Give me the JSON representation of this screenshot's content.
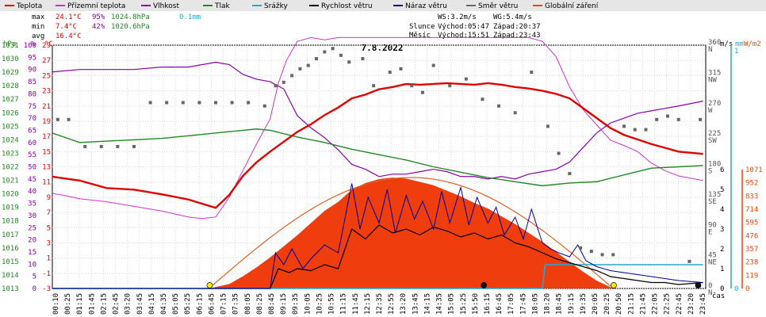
{
  "chart_data": {
    "type": "line",
    "title": "7.8.2022",
    "legend": [
      {
        "label": "Teplota",
        "color": "#e00000"
      },
      {
        "label": "Přízemní teplota",
        "color": "#cc33cc"
      },
      {
        "label": "Vlhkost",
        "color": "#8800aa"
      },
      {
        "label": "Tlak",
        "color": "#228822"
      },
      {
        "label": "Srážky",
        "color": "#22aacc"
      },
      {
        "label": "Rychlost větru",
        "color": "#000000"
      },
      {
        "label": "Náraz větru",
        "color": "#000099"
      },
      {
        "label": "Směr větru",
        "color": "#666666"
      },
      {
        "label": "Globální záření",
        "color": "#ee4400"
      }
    ],
    "stats": {
      "max": {
        "label": "max",
        "temp": "24.1°C",
        "hum": "95%",
        "pres": "1024.8hPa",
        "rain": "0.1mm"
      },
      "min": {
        "label": "min",
        "temp": "7.4°C",
        "hum": "42%",
        "pres": "1020.6hPa"
      },
      "avg": {
        "label": "avg",
        "temp": "16.4°C"
      }
    },
    "wind_info": {
      "ws": "WS:3.2m/s",
      "wg": "WG:5.4m/s"
    },
    "sun": {
      "label": "Slunce",
      "rise": "Východ:05:47",
      "set": "Západ:20:37"
    },
    "moon": {
      "label": "Měsíc",
      "rise": "Východ:15:51",
      "set": "Západ:23:43"
    },
    "axes": {
      "hpa_label": "hPa",
      "pct_label": "%",
      "c_label": "°C",
      "ms_label": "m/s",
      "mm_label": "mm",
      "wm2_label": "W/m2",
      "x_unit": "čas",
      "hpa_ticks": [
        1013,
        1014,
        1015,
        1016,
        1017,
        1018,
        1019,
        1020,
        1021,
        1022,
        1023,
        1024,
        1025,
        1026,
        1027,
        1028,
        1029,
        1030,
        1031
      ],
      "pct_ticks": [
        0,
        5,
        10,
        15,
        20,
        25,
        30,
        35,
        40,
        45,
        50,
        55,
        60,
        65,
        70,
        75,
        80,
        85,
        90,
        95,
        100
      ],
      "c_ticks": [
        -3,
        -1,
        1,
        3,
        5,
        7,
        9,
        11,
        13,
        15,
        17,
        19,
        21,
        23,
        25,
        27,
        29
      ],
      "dir_ticks": [
        {
          "deg": "0",
          "lab": "N"
        },
        {
          "deg": "45",
          "lab": "NE"
        },
        {
          "deg": "90",
          "lab": "E"
        },
        {
          "deg": "135",
          "lab": "SE"
        },
        {
          "deg": "180",
          "lab": "S"
        },
        {
          "deg": "225",
          "lab": "SW"
        },
        {
          "deg": "270",
          "lab": "W"
        },
        {
          "deg": "315",
          "lab": "NW"
        },
        {
          "deg": "360",
          "lab": "N"
        }
      ],
      "ms_ticks": [
        0,
        1,
        2,
        3,
        4,
        5,
        6
      ],
      "mm_ticks": [
        0,
        1
      ],
      "wm2_ticks": [
        0,
        119,
        238,
        357,
        476,
        595,
        714,
        833,
        952,
        1071
      ],
      "x_ticks": [
        "00:10",
        "00:25",
        "01:15",
        "01:45",
        "02:15",
        "02:45",
        "03:20",
        "03:45",
        "04:15",
        "04:35",
        "05:05",
        "05:25",
        "06:15",
        "06:45",
        "07:15",
        "07:35",
        "08:05",
        "08:25",
        "08:45",
        "09:15",
        "09:35",
        "10:05",
        "10:25",
        "10:55",
        "11:15",
        "11:45",
        "12:15",
        "12:35",
        "12:55",
        "13:20",
        "13:45",
        "14:15",
        "14:35",
        "15:05",
        "15:25",
        "15:50",
        "16:15",
        "16:45",
        "17:05",
        "17:45",
        "18:05",
        "18:20",
        "18:45",
        "19:15",
        "19:35",
        "20:05",
        "20:25",
        "20:50",
        "21:15",
        "21:45",
        "22:05",
        "22:25",
        "22:45",
        "23:20",
        "23:45"
      ]
    },
    "series": [
      {
        "name": "Teplota",
        "unit": "°C",
        "x": [
          0,
          1,
          2,
          3,
          4,
          5,
          6,
          6.5,
          7,
          7.5,
          8,
          8.5,
          9,
          9.5,
          10,
          10.5,
          11,
          11.5,
          12,
          12.5,
          13,
          13.5,
          14,
          14.5,
          15,
          15.5,
          16,
          16.5,
          17,
          17.5,
          18,
          18.5,
          19,
          19.5,
          20,
          20.5,
          21,
          21.5,
          22,
          22.5,
          23,
          23.9
        ],
        "y": [
          11.7,
          11.2,
          10.2,
          10.0,
          9.4,
          8.7,
          7.6,
          9.3,
          11.8,
          13.6,
          15.0,
          16.3,
          17.6,
          18.6,
          19.8,
          20.8,
          22.0,
          22.5,
          23.2,
          23.5,
          23.9,
          23.8,
          23.9,
          24.0,
          23.9,
          23.8,
          24.0,
          23.8,
          23.5,
          23.3,
          23.0,
          22.6,
          22.0,
          20.7,
          19.4,
          18.1,
          17.2,
          16.6,
          16.0,
          15.5,
          15.0,
          14.7
        ]
      },
      {
        "name": "Přízemní teplota",
        "unit": "°C",
        "x": [
          0,
          0.5,
          1,
          2,
          3,
          4,
          5,
          5.5,
          6,
          6.5,
          7,
          7.5,
          8,
          8.3,
          8.6,
          9,
          9.5,
          10,
          10.5,
          11,
          12,
          13,
          14,
          15,
          16,
          17,
          17.5,
          18,
          18.5,
          19,
          19.5,
          20,
          20.5,
          21,
          21.5,
          22,
          22.5,
          23,
          23.9
        ],
        "y": [
          9.5,
          9.2,
          8.8,
          8.4,
          7.8,
          7.2,
          6.4,
          6.2,
          6.4,
          9.0,
          12.5,
          16.0,
          19.3,
          24.0,
          27.0,
          29.5,
          30.0,
          29.7,
          30.0,
          30.0,
          30.0,
          30.0,
          30.0,
          30.0,
          30.0,
          30.0,
          30.0,
          29.5,
          27.5,
          23.5,
          20.5,
          18.5,
          16.5,
          15.8,
          15.0,
          13.5,
          12.5,
          11.8,
          11.2
        ]
      },
      {
        "name": "Vlhkost",
        "unit": "%",
        "x": [
          0,
          1,
          2,
          3,
          4,
          5,
          6,
          6.5,
          7,
          7.5,
          8,
          8.5,
          9,
          9.5,
          10,
          10.5,
          11,
          11.5,
          12,
          12.5,
          13,
          13.5,
          14,
          14.5,
          15,
          15.5,
          16,
          16.5,
          17,
          17.5,
          18,
          18.5,
          19,
          19.5,
          20,
          20.5,
          21,
          21.5,
          22,
          22.5,
          23,
          23.9
        ],
        "y": [
          89,
          90,
          90,
          90,
          91,
          91,
          93,
          92,
          88,
          86,
          85,
          82,
          71,
          66,
          62,
          57,
          51,
          49,
          46,
          47,
          47,
          48,
          49,
          48,
          46,
          46,
          45,
          46,
          45,
          47,
          48,
          49,
          52,
          58,
          64,
          68,
          70,
          72,
          73,
          74,
          75,
          77
        ]
      },
      {
        "name": "Tlak",
        "unit": "hPa",
        "x": [
          0,
          1,
          2,
          3,
          4,
          5,
          6,
          7,
          7.5,
          8,
          9,
          10,
          11,
          12,
          13,
          14,
          15,
          16,
          17,
          18,
          19,
          20,
          21,
          22,
          23,
          23.9
        ],
        "y": [
          1024.5,
          1023.8,
          1023.9,
          1024.0,
          1024.1,
          1024.3,
          1024.5,
          1024.7,
          1024.8,
          1024.7,
          1024.2,
          1023.8,
          1023.3,
          1022.9,
          1022.5,
          1022.0,
          1021.6,
          1021.2,
          1020.9,
          1020.6,
          1020.8,
          1020.9,
          1021.4,
          1021.9,
          1022.0,
          1022.1
        ]
      },
      {
        "name": "Rychlost větru",
        "unit": "m/s",
        "x": [
          0,
          8.0,
          8.3,
          8.7,
          9.0,
          9.5,
          10.0,
          10.5,
          11.0,
          11.5,
          12.0,
          12.5,
          13.0,
          13.5,
          14.0,
          14.5,
          15.0,
          15.5,
          16.0,
          16.5,
          17.0,
          17.5,
          18.0,
          18.5,
          19.0,
          19.5,
          20.0,
          20.5,
          21.0,
          21.5,
          22.0,
          22.5,
          23.0,
          23.9
        ],
        "y": [
          0,
          0,
          1.0,
          0.8,
          1.0,
          0.9,
          1.2,
          1.0,
          3.0,
          2.5,
          3.2,
          2.8,
          3.0,
          2.7,
          3.1,
          2.9,
          2.6,
          2.8,
          2.5,
          2.7,
          2.3,
          2.1,
          1.8,
          1.5,
          1.3,
          1.1,
          0.9,
          0.6,
          0.5,
          0.4,
          0.3,
          0.3,
          0.2,
          0.3
        ]
      },
      {
        "name": "Náraz větru",
        "unit": "m/s",
        "x": [
          0,
          8.0,
          8.2,
          8.5,
          8.8,
          9.2,
          9.5,
          10.0,
          10.5,
          11.0,
          11.3,
          11.6,
          12.0,
          12.3,
          12.6,
          13.0,
          13.3,
          13.6,
          14.0,
          14.3,
          14.6,
          15.0,
          15.3,
          15.6,
          16.0,
          16.3,
          16.6,
          17.0,
          17.3,
          17.6,
          18.0,
          18.3,
          18.6,
          19.0,
          19.3,
          19.6,
          20.0,
          20.5,
          21.0,
          21.5,
          22.0,
          22.5,
          23.0,
          23.9
        ],
        "y": [
          0,
          0,
          1.8,
          1.2,
          2.0,
          1.0,
          1.5,
          2.2,
          1.8,
          5.3,
          3.0,
          4.6,
          3.3,
          5.0,
          2.8,
          4.7,
          3.5,
          4.4,
          3.0,
          4.9,
          3.3,
          5.1,
          3.2,
          4.6,
          3.3,
          4.1,
          2.7,
          3.6,
          2.5,
          4.0,
          2.3,
          2.0,
          1.8,
          1.6,
          2.2,
          1.4,
          1.1,
          0.9,
          0.8,
          0.7,
          0.6,
          0.5,
          0.4,
          0.3
        ]
      },
      {
        "name": "Směr větru",
        "unit": "°",
        "kind": "points",
        "x": [
          0.2,
          0.6,
          1.2,
          1.8,
          2.4,
          3.0,
          3.6,
          4.2,
          4.8,
          5.4,
          6.0,
          6.6,
          7.2,
          7.8,
          8.2,
          8.5,
          8.8,
          9.1,
          9.4,
          9.7,
          10.0,
          10.3,
          10.6,
          10.9,
          11.4,
          11.8,
          12.4,
          12.8,
          13.2,
          13.6,
          14.0,
          14.6,
          15.2,
          15.8,
          16.4,
          17.0,
          17.6,
          18.2,
          18.6,
          19.0,
          19.4,
          19.8,
          20.2,
          20.6,
          21.0,
          21.4,
          21.8,
          22.2,
          22.6,
          23.0,
          23.4,
          23.8
        ],
        "y": [
          250,
          250,
          210,
          210,
          210,
          210,
          275,
          275,
          275,
          275,
          275,
          275,
          275,
          270,
          300,
          305,
          315,
          325,
          330,
          340,
          350,
          355,
          345,
          335,
          340,
          300,
          320,
          325,
          300,
          290,
          330,
          300,
          310,
          280,
          270,
          260,
          320,
          240,
          200,
          170,
          60,
          55,
          50,
          50,
          240,
          235,
          235,
          250,
          255,
          250,
          40,
          250
        ]
      },
      {
        "name": "Globální záření",
        "unit": "W/m2",
        "kind": "area",
        "x": [
          0,
          5.75,
          6.5,
          7,
          7.5,
          8,
          8.5,
          9,
          9.5,
          10,
          10.5,
          11,
          11.5,
          12,
          12.5,
          13,
          13.5,
          14,
          14.5,
          15,
          15.5,
          16,
          16.5,
          17,
          17.5,
          18,
          18.5,
          19,
          19.5,
          20,
          20.6,
          23.9
        ],
        "y": [
          0,
          0,
          40,
          110,
          190,
          280,
          380,
          480,
          590,
          700,
          780,
          890,
          950,
          985,
          1000,
          990,
          960,
          930,
          880,
          830,
          770,
          720,
          650,
          580,
          500,
          420,
          330,
          240,
          150,
          70,
          0,
          0
        ]
      },
      {
        "name": "Srážky",
        "unit": "mm",
        "x": [
          0,
          18.0,
          18.1,
          23.9
        ],
        "y": [
          0,
          0,
          0.1,
          0.1
        ]
      }
    ]
  }
}
